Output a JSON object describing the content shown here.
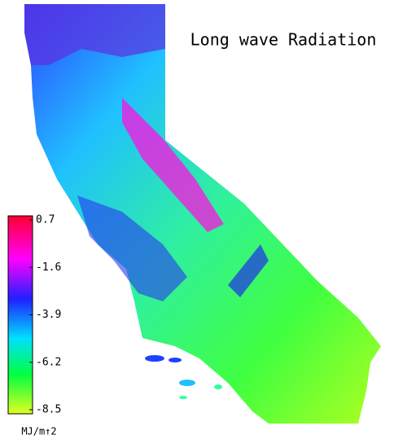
{
  "title": "Long wave Radiation",
  "colorbar": {
    "lim": [
      -8.5,
      0.7
    ],
    "ticks": [
      0.7,
      -1.6,
      -3.9,
      -6.2,
      -8.5
    ],
    "unit": "MJ/m↑2"
  }
}
